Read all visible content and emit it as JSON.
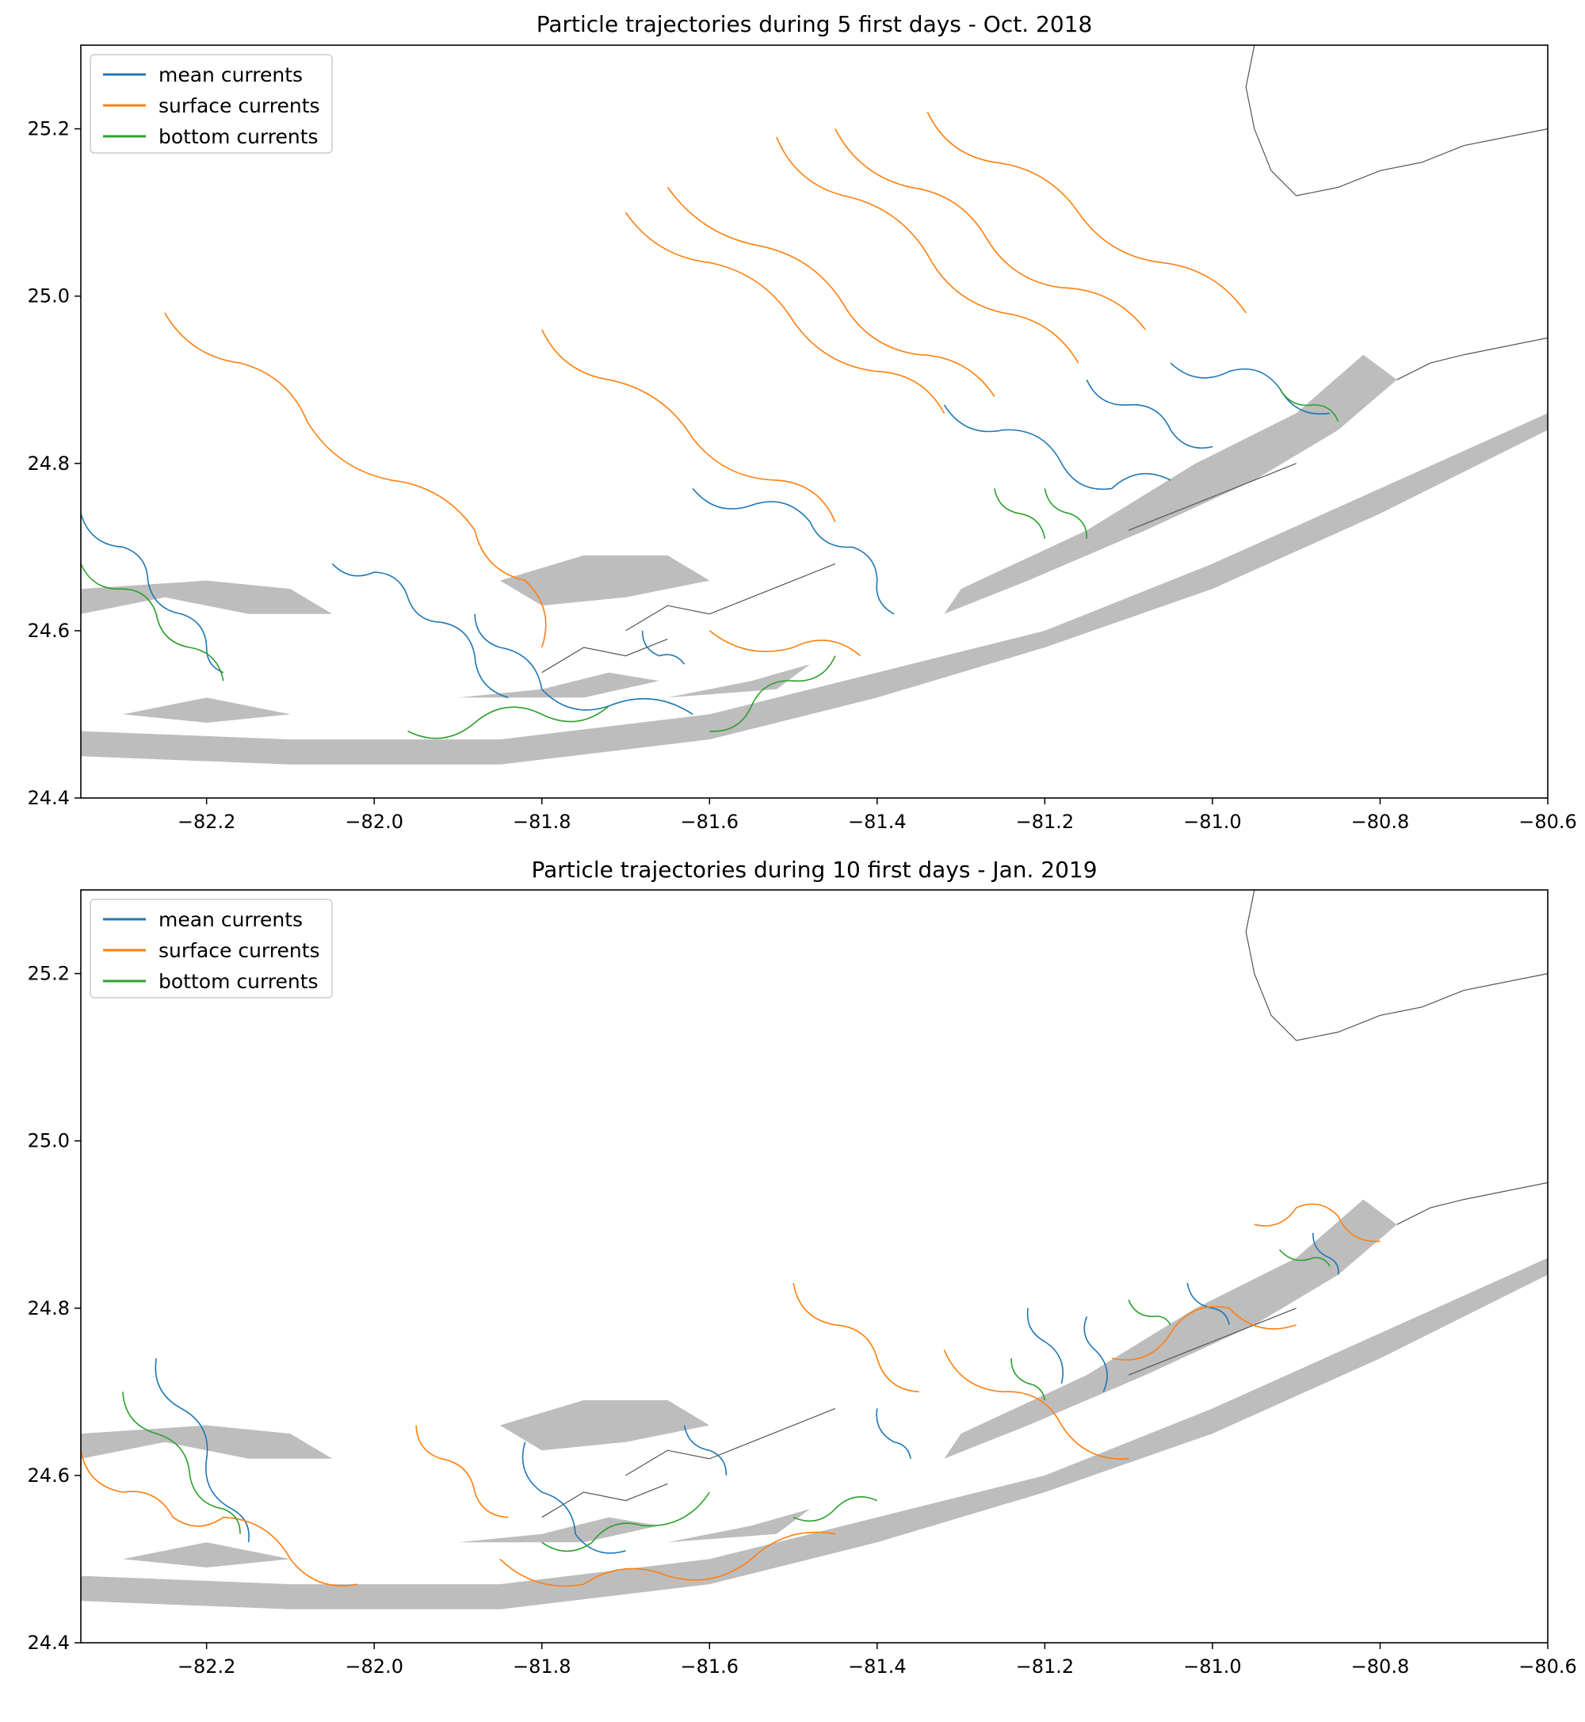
{
  "figure": {
    "colors": {
      "mean": "#1f77b4",
      "surface": "#ff7f0e",
      "bottom": "#2ca02c",
      "land_fill": "#bdbdbd",
      "coastline": "#555555",
      "frame": "#000000"
    }
  },
  "chart_data": [
    {
      "type": "line",
      "title": "Particle trajectories during 5 first days - Oct. 2018",
      "xlabel": "",
      "ylabel": "",
      "xlim": [
        -82.35,
        -80.6
      ],
      "ylim": [
        24.4,
        25.3
      ],
      "x_ticks": [
        -82.2,
        -82.0,
        -81.8,
        -81.6,
        -81.4,
        -81.2,
        -81.0,
        -80.8,
        -80.6
      ],
      "x_tick_labels": [
        "−82.2",
        "−82.0",
        "−81.8",
        "−81.6",
        "−81.4",
        "−81.2",
        "−81.0",
        "−80.8",
        "−80.6"
      ],
      "y_ticks": [
        24.4,
        24.6,
        24.8,
        25.0,
        25.2
      ],
      "y_tick_labels": [
        "24.4",
        "24.6",
        "24.8",
        "25.0",
        "25.2"
      ],
      "grid": false,
      "legend": {
        "placement": "upper-left",
        "entries": [
          "mean currents",
          "surface currents",
          "bottom currents"
        ]
      },
      "series": [
        {
          "name": "mean currents",
          "color_key": "mean",
          "trajectories": [
            [
              [
                -82.35,
                24.74
              ],
              [
                -82.3,
                24.7
              ],
              [
                -82.27,
                24.66
              ],
              [
                -82.23,
                24.62
              ],
              [
                -82.2,
                24.58
              ],
              [
                -82.18,
                24.55
              ]
            ],
            [
              [
                -82.05,
                24.68
              ],
              [
                -82.0,
                24.67
              ],
              [
                -81.96,
                24.64
              ],
              [
                -81.92,
                24.61
              ],
              [
                -81.88,
                24.57
              ],
              [
                -81.84,
                24.52
              ]
            ],
            [
              [
                -81.88,
                24.62
              ],
              [
                -81.85,
                24.58
              ],
              [
                -81.8,
                24.53
              ],
              [
                -81.72,
                24.51
              ],
              [
                -81.62,
                24.5
              ]
            ],
            [
              [
                -81.68,
                24.6
              ],
              [
                -81.66,
                24.57
              ],
              [
                -81.63,
                24.56
              ]
            ],
            [
              [
                -81.62,
                24.77
              ],
              [
                -81.55,
                24.75
              ],
              [
                -81.48,
                24.73
              ],
              [
                -81.43,
                24.7
              ],
              [
                -81.4,
                24.66
              ],
              [
                -81.38,
                24.62
              ]
            ],
            [
              [
                -81.32,
                24.87
              ],
              [
                -81.25,
                24.84
              ],
              [
                -81.18,
                24.8
              ],
              [
                -81.12,
                24.77
              ],
              [
                -81.05,
                24.78
              ]
            ],
            [
              [
                -81.15,
                24.9
              ],
              [
                -81.1,
                24.87
              ],
              [
                -81.05,
                24.84
              ],
              [
                -81.0,
                24.82
              ]
            ],
            [
              [
                -81.05,
                24.92
              ],
              [
                -80.98,
                24.91
              ],
              [
                -80.92,
                24.89
              ],
              [
                -80.86,
                24.86
              ]
            ]
          ]
        },
        {
          "name": "surface currents",
          "color_key": "surface",
          "trajectories": [
            [
              [
                -82.25,
                24.98
              ],
              [
                -82.16,
                24.92
              ],
              [
                -82.08,
                24.85
              ],
              [
                -81.98,
                24.78
              ],
              [
                -81.88,
                24.72
              ],
              [
                -81.82,
                24.66
              ],
              [
                -81.8,
                24.58
              ]
            ],
            [
              [
                -81.8,
                24.96
              ],
              [
                -81.72,
                24.9
              ],
              [
                -81.62,
                24.83
              ],
              [
                -81.52,
                24.78
              ],
              [
                -81.45,
                24.73
              ]
            ],
            [
              [
                -81.7,
                25.1
              ],
              [
                -81.6,
                25.04
              ],
              [
                -81.5,
                24.97
              ],
              [
                -81.4,
                24.91
              ],
              [
                -81.32,
                24.86
              ]
            ],
            [
              [
                -81.65,
                25.13
              ],
              [
                -81.54,
                25.06
              ],
              [
                -81.44,
                24.99
              ],
              [
                -81.35,
                24.93
              ],
              [
                -81.26,
                24.88
              ]
            ],
            [
              [
                -81.52,
                25.19
              ],
              [
                -81.44,
                25.12
              ],
              [
                -81.34,
                25.05
              ],
              [
                -81.25,
                24.98
              ],
              [
                -81.16,
                24.92
              ]
            ],
            [
              [
                -81.45,
                25.2
              ],
              [
                -81.36,
                25.13
              ],
              [
                -81.27,
                25.07
              ],
              [
                -81.18,
                25.01
              ],
              [
                -81.08,
                24.96
              ]
            ],
            [
              [
                -81.34,
                25.22
              ],
              [
                -81.26,
                25.16
              ],
              [
                -81.16,
                25.1
              ],
              [
                -81.06,
                25.04
              ],
              [
                -80.96,
                24.98
              ]
            ],
            [
              [
                -81.6,
                24.6
              ],
              [
                -81.5,
                24.58
              ],
              [
                -81.42,
                24.57
              ]
            ]
          ]
        },
        {
          "name": "bottom currents",
          "color_key": "bottom",
          "trajectories": [
            [
              [
                -82.35,
                24.68
              ],
              [
                -82.3,
                24.65
              ],
              [
                -82.26,
                24.62
              ],
              [
                -82.22,
                24.58
              ],
              [
                -82.18,
                24.54
              ]
            ],
            [
              [
                -81.96,
                24.48
              ],
              [
                -81.88,
                24.49
              ],
              [
                -81.8,
                24.5
              ],
              [
                -81.72,
                24.51
              ]
            ],
            [
              [
                -81.6,
                24.48
              ],
              [
                -81.55,
                24.51
              ],
              [
                -81.5,
                24.54
              ],
              [
                -81.45,
                24.57
              ]
            ],
            [
              [
                -81.26,
                24.77
              ],
              [
                -81.23,
                24.74
              ],
              [
                -81.2,
                24.71
              ]
            ],
            [
              [
                -81.2,
                24.77
              ],
              [
                -81.17,
                24.74
              ],
              [
                -81.15,
                24.71
              ]
            ],
            [
              [
                -80.92,
                24.89
              ],
              [
                -80.88,
                24.87
              ],
              [
                -80.85,
                24.85
              ]
            ]
          ]
        }
      ]
    },
    {
      "type": "line",
      "title": "Particle trajectories during 10 first days - Jan. 2019",
      "xlabel": "",
      "ylabel": "",
      "xlim": [
        -82.35,
        -80.6
      ],
      "ylim": [
        24.4,
        25.3
      ],
      "x_ticks": [
        -82.2,
        -82.0,
        -81.8,
        -81.6,
        -81.4,
        -81.2,
        -81.0,
        -80.8,
        -80.6
      ],
      "x_tick_labels": [
        "−82.2",
        "−82.0",
        "−81.8",
        "−81.6",
        "−81.4",
        "−81.2",
        "−81.0",
        "−80.8",
        "−80.6"
      ],
      "y_ticks": [
        24.4,
        24.6,
        24.8,
        25.0,
        25.2
      ],
      "y_tick_labels": [
        "24.4",
        "24.6",
        "24.8",
        "25.0",
        "25.2"
      ],
      "grid": false,
      "legend": {
        "placement": "upper-left",
        "entries": [
          "mean currents",
          "surface currents",
          "bottom currents"
        ]
      },
      "series": [
        {
          "name": "mean currents",
          "color_key": "mean",
          "trajectories": [
            [
              [
                -82.26,
                24.74
              ],
              [
                -82.23,
                24.68
              ],
              [
                -82.2,
                24.62
              ],
              [
                -82.17,
                24.56
              ],
              [
                -82.15,
                24.52
              ]
            ],
            [
              [
                -81.82,
                24.64
              ],
              [
                -81.8,
                24.58
              ],
              [
                -81.76,
                24.53
              ],
              [
                -81.7,
                24.51
              ]
            ],
            [
              [
                -81.63,
                24.66
              ],
              [
                -81.6,
                24.63
              ],
              [
                -81.58,
                24.6
              ]
            ],
            [
              [
                -81.4,
                24.68
              ],
              [
                -81.38,
                24.64
              ],
              [
                -81.36,
                24.62
              ]
            ],
            [
              [
                -81.22,
                24.8
              ],
              [
                -81.2,
                24.76
              ],
              [
                -81.18,
                24.71
              ]
            ],
            [
              [
                -81.15,
                24.79
              ],
              [
                -81.14,
                24.75
              ],
              [
                -81.13,
                24.7
              ]
            ],
            [
              [
                -81.03,
                24.83
              ],
              [
                -81.0,
                24.8
              ],
              [
                -80.98,
                24.78
              ]
            ],
            [
              [
                -80.88,
                24.89
              ],
              [
                -80.86,
                24.86
              ],
              [
                -80.85,
                24.84
              ]
            ]
          ]
        },
        {
          "name": "surface currents",
          "color_key": "surface",
          "trajectories": [
            [
              [
                -82.35,
                24.63
              ],
              [
                -82.3,
                24.58
              ],
              [
                -82.24,
                24.55
              ],
              [
                -82.18,
                24.55
              ],
              [
                -82.1,
                24.5
              ],
              [
                -82.02,
                24.47
              ]
            ],
            [
              [
                -81.95,
                24.66
              ],
              [
                -81.92,
                24.62
              ],
              [
                -81.88,
                24.58
              ],
              [
                -81.84,
                24.55
              ]
            ],
            [
              [
                -81.85,
                24.5
              ],
              [
                -81.75,
                24.47
              ],
              [
                -81.65,
                24.48
              ],
              [
                -81.55,
                24.5
              ],
              [
                -81.45,
                24.53
              ]
            ],
            [
              [
                -81.5,
                24.83
              ],
              [
                -81.45,
                24.78
              ],
              [
                -81.4,
                24.74
              ],
              [
                -81.35,
                24.7
              ]
            ],
            [
              [
                -81.32,
                24.75
              ],
              [
                -81.25,
                24.7
              ],
              [
                -81.18,
                24.66
              ],
              [
                -81.1,
                24.62
              ]
            ],
            [
              [
                -81.12,
                24.74
              ],
              [
                -81.05,
                24.77
              ],
              [
                -80.98,
                24.8
              ],
              [
                -80.9,
                24.78
              ]
            ],
            [
              [
                -80.95,
                24.9
              ],
              [
                -80.9,
                24.92
              ],
              [
                -80.85,
                24.91
              ],
              [
                -80.8,
                24.88
              ]
            ]
          ]
        },
        {
          "name": "bottom currents",
          "color_key": "bottom",
          "trajectories": [
            [
              [
                -82.3,
                24.7
              ],
              [
                -82.26,
                24.65
              ],
              [
                -82.22,
                24.6
              ],
              [
                -82.18,
                24.56
              ],
              [
                -82.16,
                24.53
              ]
            ],
            [
              [
                -81.8,
                24.52
              ],
              [
                -81.74,
                24.52
              ],
              [
                -81.68,
                24.54
              ],
              [
                -81.6,
                24.58
              ]
            ],
            [
              [
                -81.5,
                24.55
              ],
              [
                -81.45,
                24.56
              ],
              [
                -81.4,
                24.57
              ]
            ],
            [
              [
                -81.24,
                24.74
              ],
              [
                -81.22,
                24.71
              ],
              [
                -81.2,
                24.69
              ]
            ],
            [
              [
                -81.1,
                24.81
              ],
              [
                -81.07,
                24.79
              ],
              [
                -81.05,
                24.78
              ]
            ],
            [
              [
                -80.92,
                24.87
              ],
              [
                -80.88,
                24.86
              ],
              [
                -80.86,
                24.85
              ]
            ]
          ]
        }
      ]
    }
  ]
}
